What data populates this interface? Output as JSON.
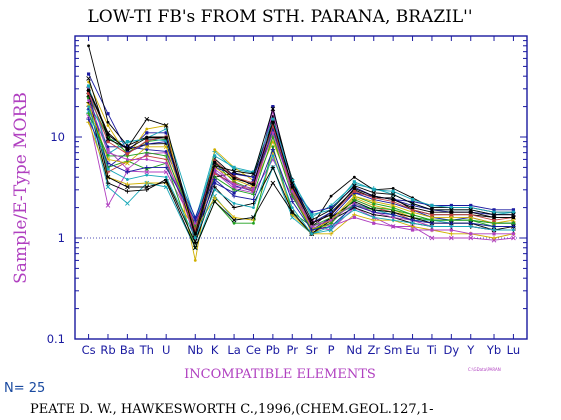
{
  "chart_data": {
    "type": "line",
    "title": "LOW-TI FB's FROM STH. PARANA, BRAZIL''",
    "xlabel": "INCOMPATIBLE ELEMENTS",
    "ylabel": "Sample/E-Type MORB",
    "yscale": "log",
    "ylim": [
      0.1,
      100
    ],
    "ytick_labels": [
      "0.1",
      "1",
      "10"
    ],
    "ytick_values": [
      0.1,
      1,
      10
    ],
    "reference_line": 1,
    "categories": [
      "Cs",
      "Rb",
      "Ba",
      "Th",
      "U",
      "Nb",
      "K",
      "La",
      "Ce",
      "Pb",
      "Pr",
      "Sr",
      "P",
      "Nd",
      "Zr",
      "Sm",
      "Eu",
      "Ti",
      "Dy",
      "Y",
      "Yb",
      "Lu"
    ],
    "x_positions": [
      1,
      2,
      3,
      4,
      5,
      6.5,
      7.5,
      8.5,
      9.5,
      10.5,
      11.5,
      12.5,
      13.5,
      14.7,
      15.7,
      16.7,
      17.7,
      18.7,
      19.7,
      20.7,
      21.9,
      22.9
    ],
    "sample_count_label": "N= 25",
    "reference_text": "PEATE D. W., HAWKESWORTH C.,1996,(CHEM.GEOL.127,1-",
    "footnote": "C:\\GData\\PARAN",
    "series": [
      {
        "color": "#1a1aa0",
        "values": [
          42,
          17,
          7.2,
          11,
          11,
          1.0,
          4.5,
          3.3,
          2.9,
          20,
          2.9,
          1.2,
          1.6,
          2.8,
          2.4,
          2.2,
          1.9,
          1.6,
          1.5,
          1.6,
          1.4,
          1.4
        ]
      },
      {
        "color": "#000000",
        "values": [
          30,
          11,
          7.5,
          8.5,
          8.6,
          1.3,
          6.1,
          4.1,
          3.3,
          15,
          3.0,
          1.3,
          1.8,
          3.0,
          2.5,
          2.5,
          1.9,
          1.7,
          1.7,
          1.7,
          1.6,
          1.6
        ]
      },
      {
        "color": "#18a8b8",
        "values": [
          22,
          9.5,
          8.8,
          9.8,
          12,
          1.5,
          7.2,
          4.8,
          4.4,
          13,
          3.8,
          1.6,
          2.1,
          3.4,
          3.1,
          2.7,
          2.2,
          1.9,
          1.9,
          1.9,
          1.7,
          1.8
        ]
      },
      {
        "color": "#d0b000",
        "values": [
          35,
          13,
          6.5,
          12,
          13,
          0.6,
          7.5,
          5.0,
          3.7,
          10,
          3.3,
          1.1,
          1.4,
          2.5,
          2.1,
          1.9,
          1.6,
          1.4,
          1.4,
          1.4,
          1.3,
          1.3
        ]
      },
      {
        "color": "#1ea01e",
        "values": [
          25,
          10,
          7.0,
          9.0,
          9.5,
          1.2,
          5.5,
          3.6,
          3.0,
          12,
          2.8,
          1.3,
          1.5,
          2.6,
          2.2,
          2.0,
          1.7,
          1.5,
          1.5,
          1.5,
          1.3,
          1.3
        ]
      },
      {
        "color": "#b040c0",
        "values": [
          16,
          2.1,
          4.6,
          4.5,
          4.5,
          1.3,
          4.5,
          3.1,
          2.8,
          6.0,
          2.6,
          1.3,
          1.2,
          2.0,
          1.6,
          1.3,
          1.3,
          1.0,
          1.0,
          1.0,
          0.95,
          1.0
        ]
      },
      {
        "color": "#c04040",
        "values": [
          20,
          4.5,
          5.7,
          6.5,
          6.0,
          1.1,
          4.3,
          3.5,
          2.9,
          14,
          2.7,
          1.2,
          1.4,
          2.4,
          2.0,
          1.8,
          1.5,
          1.3,
          1.3,
          1.3,
          1.2,
          1.2
        ]
      },
      {
        "color": "#000000",
        "values": [
          80,
          14,
          8.2,
          10,
          10,
          0.9,
          4.0,
          4.4,
          4.0,
          16,
          3.8,
          1.3,
          2.6,
          4.0,
          3.0,
          3.1,
          2.5,
          2.0,
          2.0,
          2.0,
          1.8,
          1.8
        ]
      },
      {
        "color": "#1a1aa0",
        "values": [
          28,
          5.0,
          7.0,
          8.5,
          9.0,
          1.1,
          3.5,
          2.8,
          3.7,
          11,
          3.2,
          1.8,
          2.0,
          3.2,
          2.6,
          2.4,
          2.3,
          2.1,
          2.1,
          2.1,
          1.9,
          1.9
        ]
      },
      {
        "color": "#18a8b8",
        "values": [
          18,
          3.2,
          2.2,
          3.5,
          3.2,
          0.8,
          2.6,
          1.5,
          1.6,
          5.0,
          1.6,
          1.1,
          1.2,
          2.2,
          1.9,
          1.7,
          1.5,
          1.5,
          1.4,
          1.4,
          1.3,
          1.3
        ]
      },
      {
        "color": "#d0b000",
        "values": [
          14,
          4.0,
          3.4,
          3.5,
          3.5,
          1.2,
          2.5,
          1.6,
          1.5,
          7.0,
          1.7,
          1.1,
          1.1,
          1.7,
          1.5,
          1.5,
          1.3,
          1.2,
          1.1,
          1.1,
          1.0,
          1.1
        ]
      },
      {
        "color": "#1ea01e",
        "values": [
          24,
          5.0,
          5.8,
          4.8,
          5.5,
          0.8,
          2.3,
          1.4,
          1.4,
          8.0,
          1.8,
          1.3,
          1.6,
          2.1,
          1.9,
          1.8,
          1.6,
          1.5,
          1.5,
          1.5,
          1.4,
          1.4
        ]
      },
      {
        "color": "#b040c0",
        "values": [
          30,
          7.5,
          4.8,
          6.8,
          7.0,
          1.0,
          5.3,
          3.2,
          3.0,
          18,
          2.5,
          1.5,
          1.3,
          1.6,
          1.4,
          1.3,
          1.2,
          1.2,
          1.2,
          1.1,
          1.1,
          1.1
        ]
      },
      {
        "color": "#000000",
        "values": [
          26,
          4.0,
          3.2,
          3.2,
          3.6,
          0.8,
          2.3,
          1.5,
          1.6,
          3.5,
          1.8,
          1.1,
          1.6,
          2.3,
          1.9,
          1.8,
          1.6,
          1.4,
          1.4,
          1.4,
          1.2,
          1.3
        ]
      },
      {
        "color": "#000000",
        "values": [
          22,
          3.5,
          2.9,
          3.0,
          3.8,
          0.9,
          3.2,
          2.0,
          2.2,
          5.0,
          1.8,
          1.1,
          1.5,
          2.0,
          1.7,
          1.6,
          1.4,
          1.3,
          1.3,
          1.3,
          1.2,
          1.2
        ]
      },
      {
        "color": "#1a1aa0",
        "values": [
          19,
          8.0,
          8.0,
          7.5,
          7.2,
          1.6,
          5.0,
          4.3,
          4.0,
          12,
          3.4,
          1.4,
          1.8,
          2.8,
          2.6,
          2.4,
          2.1,
          1.9,
          1.8,
          1.8,
          1.7,
          1.7
        ]
      },
      {
        "color": "#18a8b8",
        "values": [
          32,
          6.8,
          9.0,
          9.5,
          9.2,
          1.4,
          6.5,
          5.0,
          4.5,
          15,
          3.7,
          1.7,
          1.9,
          3.6,
          3.0,
          2.9,
          2.4,
          2.1,
          2.0,
          2.0,
          1.8,
          1.8
        ]
      },
      {
        "color": "#d0b000",
        "values": [
          21,
          6.0,
          5.5,
          8.0,
          8.0,
          1.1,
          5.0,
          3.8,
          3.2,
          9.0,
          3.0,
          1.2,
          1.5,
          2.6,
          2.3,
          2.1,
          1.8,
          1.6,
          1.6,
          1.6,
          1.4,
          1.5
        ]
      },
      {
        "color": "#1ea01e",
        "values": [
          17,
          6.5,
          6.5,
          7.0,
          6.5,
          1.3,
          4.0,
          3.0,
          2.7,
          10,
          2.6,
          1.2,
          1.4,
          2.4,
          2.0,
          1.9,
          1.7,
          1.5,
          1.5,
          1.5,
          1.4,
          1.4
        ]
      },
      {
        "color": "#b040c0",
        "values": [
          23,
          7.0,
          6.0,
          6.0,
          5.5,
          1.4,
          4.8,
          3.4,
          3.1,
          11,
          2.9,
          1.3,
          1.5,
          2.2,
          1.8,
          1.6,
          1.5,
          1.3,
          1.3,
          1.3,
          1.2,
          1.2
        ]
      },
      {
        "color": "#c04040",
        "values": [
          27,
          9.0,
          6.8,
          9.2,
          10,
          1.2,
          5.8,
          4.0,
          3.5,
          13,
          3.1,
          1.4,
          1.7,
          2.9,
          2.5,
          2.3,
          1.9,
          1.7,
          1.7,
          1.7,
          1.5,
          1.6
        ]
      },
      {
        "color": "#000000",
        "values": [
          38,
          9.5,
          7.8,
          15,
          13,
          1.0,
          5.2,
          4.6,
          4.3,
          19,
          3.5,
          1.5,
          1.9,
          3.3,
          2.8,
          2.7,
          2.2,
          1.9,
          1.9,
          1.9,
          1.7,
          1.7
        ]
      },
      {
        "color": "#1a1aa0",
        "values": [
          15,
          5.5,
          4.5,
          5.0,
          5.0,
          1.5,
          3.8,
          2.6,
          2.4,
          7.5,
          2.3,
          1.2,
          1.3,
          2.1,
          1.8,
          1.7,
          1.5,
          1.4,
          1.4,
          1.4,
          1.3,
          1.3
        ]
      },
      {
        "color": "#18a8b8",
        "values": [
          20,
          4.8,
          3.8,
          4.2,
          4.0,
          1.0,
          3.0,
          2.2,
          2.0,
          6.5,
          2.0,
          1.1,
          1.3,
          1.9,
          1.6,
          1.5,
          1.4,
          1.3,
          1.3,
          1.3,
          1.2,
          1.2
        ]
      },
      {
        "color": "#000000",
        "values": [
          29,
          10.5,
          7.6,
          9.8,
          9.8,
          1.1,
          5.6,
          3.9,
          3.4,
          14,
          3.2,
          1.4,
          1.7,
          3.1,
          2.6,
          2.4,
          2.0,
          1.8,
          1.8,
          1.8,
          1.6,
          1.6
        ]
      }
    ]
  }
}
